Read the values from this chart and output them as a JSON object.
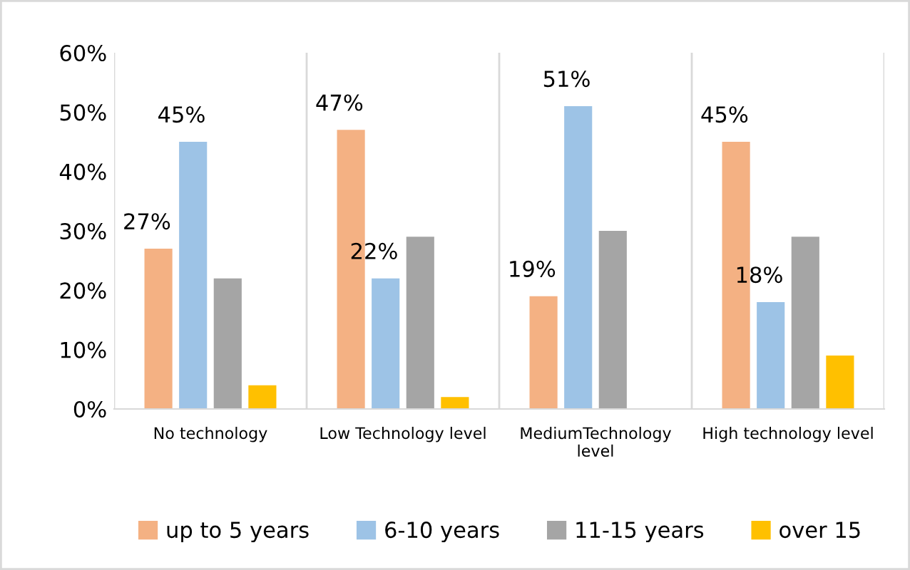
{
  "chart_data": {
    "type": "bar",
    "categories": [
      "No technology",
      "Low Technology level",
      "MediumTechnology level",
      "High technology level"
    ],
    "series": [
      {
        "name": "up to 5 years",
        "color": "#f4b183",
        "values": [
          27,
          47,
          19,
          45
        ],
        "value_labels": [
          "27%",
          "47%",
          "19%",
          "45%"
        ]
      },
      {
        "name": "6-10 years",
        "color": "#9dc3e6",
        "values": [
          45,
          22,
          51,
          18
        ],
        "value_labels": [
          "45%",
          "22%",
          "51%",
          "18%"
        ]
      },
      {
        "name": "11-15 years",
        "color": "#a5a5a5",
        "values": [
          22,
          29,
          30,
          29
        ]
      },
      {
        "name": "over 15",
        "color": "#ffc000",
        "values": [
          4,
          2,
          null,
          9
        ]
      }
    ],
    "ylim": [
      0,
      60
    ],
    "yticks": [
      {
        "value": 0,
        "label": "0%"
      },
      {
        "value": 10,
        "label": "10%"
      },
      {
        "value": 20,
        "label": "20%"
      },
      {
        "value": 30,
        "label": "30%"
      },
      {
        "value": 40,
        "label": "40%"
      },
      {
        "value": 50,
        "label": "50%"
      },
      {
        "value": 60,
        "label": "60%"
      }
    ],
    "grid": "x",
    "legend": "bottom"
  }
}
